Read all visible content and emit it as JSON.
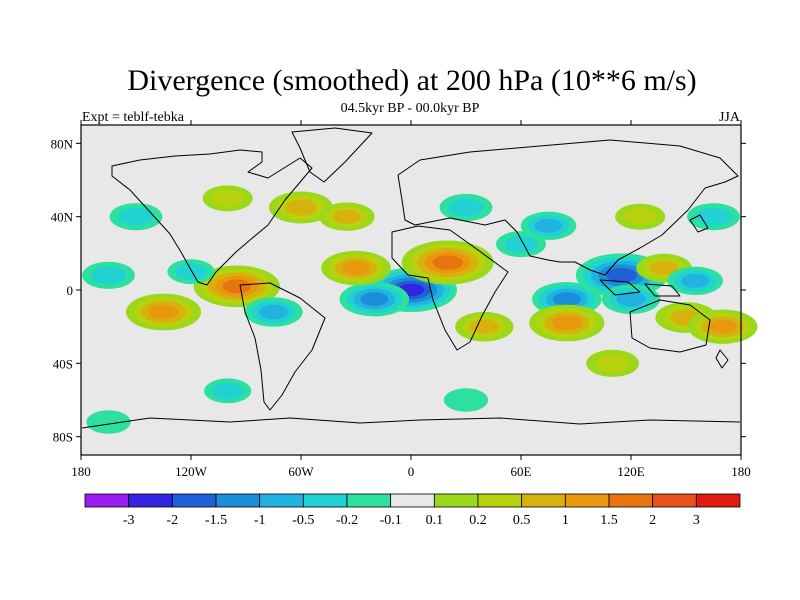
{
  "title": "Divergence (smoothed) at 200 hPa (10**6 m/s)",
  "subtitle_left": "Expt = teblf-tebka",
  "subtitle_center": "04.5kyr BP - 00.0kyr BP",
  "subtitle_right": "JJA",
  "map": {
    "lon_range": [
      -180,
      180
    ],
    "lat_range": [
      -90,
      90
    ],
    "x_ticks": [
      {
        "lon": -180,
        "label": "180"
      },
      {
        "lon": -120,
        "label": "120W"
      },
      {
        "lon": -60,
        "label": "60W"
      },
      {
        "lon": 0,
        "label": "0"
      },
      {
        "lon": 60,
        "label": "60E"
      },
      {
        "lon": 120,
        "label": "120E"
      },
      {
        "lon": 180,
        "label": "180"
      }
    ],
    "y_ticks": [
      {
        "lat": 80,
        "label": "80N"
      },
      {
        "lat": 40,
        "label": "40N"
      },
      {
        "lat": 0,
        "label": "0"
      },
      {
        "lat": -40,
        "label": "40S"
      },
      {
        "lat": -80,
        "label": "80S"
      }
    ]
  },
  "colorbar": {
    "colors": [
      "#9a1cf0",
      "#3224e0",
      "#1f5fd8",
      "#1b8ed8",
      "#22b2df",
      "#20d2d2",
      "#2ee0a0",
      "#e8e8e8",
      "#99d81a",
      "#b8d20e",
      "#d8b20c",
      "#e8980e",
      "#e8740e",
      "#e85020",
      "#e01c10"
    ],
    "labels": [
      "-3",
      "-2",
      "-1.5",
      "-1",
      "-0.5",
      "-0.2",
      "-0.1",
      "0.1",
      "0.2",
      "0.5",
      "1",
      "1.5",
      "2",
      "3"
    ]
  },
  "field_features": [
    {
      "lon": 0,
      "lat": 0,
      "value": -3.0
    },
    {
      "lon": -20,
      "lat": -5,
      "value": -1.2
    },
    {
      "lon": 20,
      "lat": 15,
      "value": 2.0
    },
    {
      "lon": -30,
      "lat": 12,
      "value": 1.2
    },
    {
      "lon": -95,
      "lat": 2,
      "value": 1.8
    },
    {
      "lon": -135,
      "lat": -12,
      "value": 1.4
    },
    {
      "lon": -165,
      "lat": 8,
      "value": -0.6
    },
    {
      "lon": -120,
      "lat": 10,
      "value": -0.4
    },
    {
      "lon": -75,
      "lat": -12,
      "value": -0.8
    },
    {
      "lon": 40,
      "lat": -20,
      "value": 0.8
    },
    {
      "lon": 30,
      "lat": 45,
      "value": -0.6
    },
    {
      "lon": 75,
      "lat": 35,
      "value": -0.7
    },
    {
      "lon": 85,
      "lat": -5,
      "value": -1.2
    },
    {
      "lon": 85,
      "lat": -18,
      "value": 1.4
    },
    {
      "lon": 115,
      "lat": 8,
      "value": -2.0
    },
    {
      "lon": 138,
      "lat": 12,
      "value": 0.7
    },
    {
      "lon": 120,
      "lat": -5,
      "value": -0.8
    },
    {
      "lon": 155,
      "lat": 5,
      "value": -0.7
    },
    {
      "lon": 150,
      "lat": -15,
      "value": 0.9
    },
    {
      "lon": 170,
      "lat": -20,
      "value": 1.2
    },
    {
      "lon": -150,
      "lat": 40,
      "value": -0.6
    },
    {
      "lon": -100,
      "lat": 50,
      "value": 0.5
    },
    {
      "lon": -60,
      "lat": 45,
      "value": 1.0
    },
    {
      "lon": -35,
      "lat": 40,
      "value": 0.7
    },
    {
      "lon": 60,
      "lat": 25,
      "value": -0.5
    },
    {
      "lon": 125,
      "lat": 40,
      "value": 0.5
    },
    {
      "lon": 165,
      "lat": 40,
      "value": -0.6
    },
    {
      "lon": -100,
      "lat": -55,
      "value": -0.4
    },
    {
      "lon": 30,
      "lat": -60,
      "value": -0.3
    },
    {
      "lon": 110,
      "lat": -40,
      "value": 0.6
    },
    {
      "lon": -165,
      "lat": -72,
      "value": -0.3
    }
  ]
}
